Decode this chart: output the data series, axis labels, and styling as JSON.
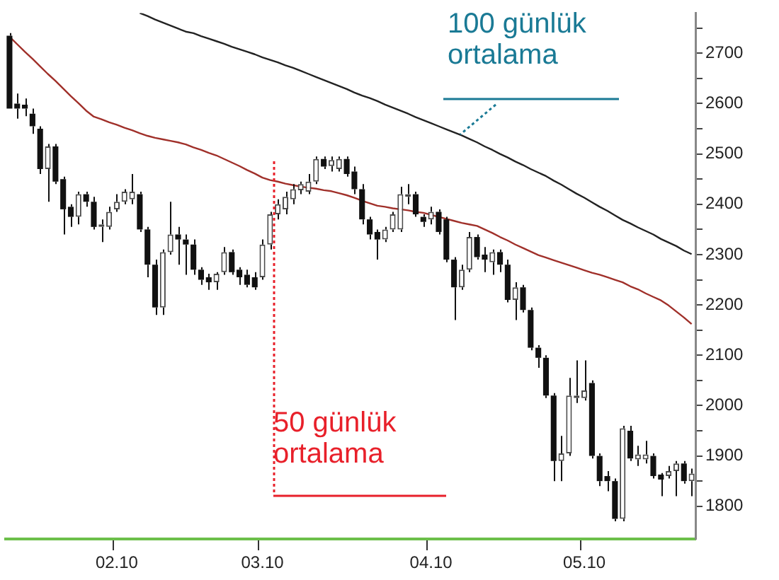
{
  "chart_data": {
    "type": "candlestick",
    "categories": [
      null,
      null,
      null,
      null,
      null,
      null,
      null,
      null,
      null,
      null,
      null,
      null,
      null,
      null,
      "02.10",
      null,
      null,
      null,
      null,
      null,
      null,
      null,
      null,
      null,
      null,
      null,
      null,
      null,
      null,
      null,
      null,
      null,
      null,
      "03.10",
      null,
      null,
      null,
      null,
      null,
      null,
      null,
      null,
      null,
      null,
      null,
      null,
      null,
      null,
      null,
      null,
      null,
      null,
      null,
      null,
      null,
      "04.10",
      null,
      null,
      null,
      null,
      null,
      null,
      null,
      null,
      null,
      null,
      null,
      null,
      null,
      null,
      null,
      null,
      null,
      null,
      null,
      "05.10",
      null,
      null,
      null,
      null,
      null,
      null,
      null,
      null,
      null,
      null,
      null,
      null,
      null,
      null
    ],
    "ohlc": [
      [
        2735,
        2740,
        2590,
        2590
      ],
      [
        2600,
        2620,
        2570,
        2590
      ],
      [
        2598,
        2610,
        2575,
        2590
      ],
      [
        2580,
        2590,
        2540,
        2555
      ],
      [
        2550,
        2555,
        2460,
        2470
      ],
      [
        2470,
        2520,
        2405,
        2515
      ],
      [
        2515,
        2520,
        2440,
        2445
      ],
      [
        2450,
        2455,
        2340,
        2390
      ],
      [
        2395,
        2400,
        2355,
        2375
      ],
      [
        2375,
        2425,
        2360,
        2420
      ],
      [
        2420,
        2425,
        2395,
        2405
      ],
      [
        2405,
        2415,
        2350,
        2355
      ],
      [
        2355,
        2370,
        2325,
        2360
      ],
      [
        2355,
        2395,
        2350,
        2385
      ],
      [
        2390,
        2420,
        2385,
        2405
      ],
      [
        2405,
        2430,
        2400,
        2425
      ],
      [
        2410,
        2460,
        2400,
        2425
      ],
      [
        2420,
        2425,
        2345,
        2350
      ],
      [
        2350,
        2355,
        2255,
        2280
      ],
      [
        2280,
        2290,
        2180,
        2195
      ],
      [
        2195,
        2310,
        2180,
        2305
      ],
      [
        2305,
        2405,
        2300,
        2340
      ],
      [
        2340,
        2355,
        2280,
        2330
      ],
      [
        2330,
        2340,
        2260,
        2320
      ],
      [
        2320,
        2330,
        2260,
        2270
      ],
      [
        2270,
        2275,
        2240,
        2250
      ],
      [
        2255,
        2262,
        2230,
        2245
      ],
      [
        2245,
        2265,
        2230,
        2262
      ],
      [
        2265,
        2315,
        2260,
        2305
      ],
      [
        2305,
        2310,
        2260,
        2265
      ],
      [
        2270,
        2275,
        2240,
        2255
      ],
      [
        2260,
        2270,
        2235,
        2240
      ],
      [
        2255,
        2265,
        2230,
        2235
      ],
      [
        2255,
        2330,
        2250,
        2320
      ],
      [
        2320,
        2385,
        2310,
        2380
      ],
      [
        2380,
        2410,
        2370,
        2400
      ],
      [
        2390,
        2425,
        2380,
        2415
      ],
      [
        2410,
        2440,
        2400,
        2430
      ],
      [
        2428,
        2445,
        2420,
        2440
      ],
      [
        2425,
        2460,
        2420,
        2445
      ],
      [
        2445,
        2495,
        2440,
        2490
      ],
      [
        2490,
        2495,
        2470,
        2475
      ],
      [
        2476,
        2495,
        2465,
        2488
      ],
      [
        2470,
        2495,
        2465,
        2490
      ],
      [
        2490,
        2495,
        2455,
        2460
      ],
      [
        2465,
        2475,
        2420,
        2430
      ],
      [
        2430,
        2440,
        2360,
        2370
      ],
      [
        2370,
        2375,
        2330,
        2340
      ],
      [
        2345,
        2350,
        2290,
        2330
      ],
      [
        2330,
        2355,
        2325,
        2350
      ],
      [
        2350,
        2385,
        2345,
        2380
      ],
      [
        2350,
        2435,
        2345,
        2420
      ],
      [
        2415,
        2440,
        2400,
        2420
      ],
      [
        2420,
        2425,
        2375,
        2380
      ],
      [
        2375,
        2380,
        2355,
        2365
      ],
      [
        2370,
        2395,
        2360,
        2385
      ],
      [
        2385,
        2390,
        2340,
        2345
      ],
      [
        2370,
        2375,
        2285,
        2290
      ],
      [
        2290,
        2295,
        2170,
        2235
      ],
      [
        2235,
        2280,
        2230,
        2270
      ],
      [
        2270,
        2345,
        2265,
        2335
      ],
      [
        2335,
        2340,
        2290,
        2295
      ],
      [
        2300,
        2315,
        2265,
        2290
      ],
      [
        2285,
        2310,
        2260,
        2305
      ],
      [
        2305,
        2310,
        2265,
        2280
      ],
      [
        2280,
        2290,
        2205,
        2210
      ],
      [
        2210,
        2245,
        2170,
        2235
      ],
      [
        2235,
        2240,
        2185,
        2190
      ],
      [
        2190,
        2195,
        2110,
        2115
      ],
      [
        2115,
        2120,
        2075,
        2095
      ],
      [
        2095,
        2100,
        2015,
        2020
      ],
      [
        2020,
        2025,
        1850,
        1890
      ],
      [
        1890,
        1940,
        1850,
        1905
      ],
      [
        1905,
        2055,
        1900,
        2020
      ],
      [
        2015,
        2090,
        2005,
        2020
      ],
      [
        2015,
        2090,
        2010,
        2030
      ],
      [
        2045,
        2050,
        1895,
        1900
      ],
      [
        1900,
        1905,
        1840,
        1850
      ],
      [
        1860,
        1870,
        1830,
        1850
      ],
      [
        1850,
        1855,
        1770,
        1775
      ],
      [
        1775,
        1960,
        1770,
        1955
      ],
      [
        1950,
        1960,
        1890,
        1895
      ],
      [
        1893,
        1920,
        1880,
        1903
      ],
      [
        1893,
        1930,
        1885,
        1903
      ],
      [
        1900,
        1905,
        1855,
        1860
      ],
      [
        1863,
        1866,
        1820,
        1853
      ],
      [
        1860,
        1880,
        1855,
        1870
      ],
      [
        1870,
        1890,
        1820,
        1885
      ],
      [
        1885,
        1890,
        1845,
        1850
      ],
      [
        1850,
        1875,
        1820,
        1865
      ]
    ],
    "series": [
      {
        "type": "line",
        "name": "100 günlük ortalama",
        "color": "#222222",
        "values": [
          null,
          null,
          null,
          null,
          null,
          null,
          null,
          null,
          null,
          null,
          null,
          null,
          null,
          null,
          null,
          null,
          null,
          2780,
          2774,
          2767,
          2761,
          2755,
          2749,
          2743,
          2740,
          2734,
          2729,
          2724,
          2719,
          2713,
          2708,
          2703,
          2698,
          2692,
          2687,
          2682,
          2676,
          2671,
          2665,
          2659,
          2653,
          2647,
          2641,
          2635,
          2629,
          2622,
          2616,
          2611,
          2605,
          2598,
          2592,
          2586,
          2580,
          2573,
          2567,
          2561,
          2555,
          2549,
          2543,
          2537,
          2530,
          2523,
          2515,
          2508,
          2500,
          2493,
          2485,
          2478,
          2470,
          2463,
          2456,
          2447,
          2439,
          2430,
          2421,
          2413,
          2404,
          2395,
          2387,
          2378,
          2369,
          2362,
          2354,
          2347,
          2340,
          2331,
          2324,
          2317,
          2308,
          2301
        ]
      },
      {
        "type": "line",
        "name": "50 günlük ortalama",
        "color": "#a0302a",
        "values": [
          2733,
          2718,
          2703,
          2689,
          2674,
          2659,
          2645,
          2630,
          2615,
          2601,
          2586,
          2574,
          2569,
          2563,
          2558,
          2552,
          2547,
          2541,
          2536,
          2532,
          2529,
          2526,
          2523,
          2519,
          2513,
          2508,
          2502,
          2497,
          2490,
          2483,
          2476,
          2468,
          2461,
          2453,
          2448,
          2445,
          2441,
          2438,
          2435,
          2433,
          2431,
          2428,
          2426,
          2422,
          2418,
          2413,
          2407,
          2402,
          2397,
          2395,
          2392,
          2390,
          2388,
          2385,
          2383,
          2379,
          2375,
          2371,
          2367,
          2363,
          2360,
          2357,
          2350,
          2343,
          2335,
          2328,
          2320,
          2313,
          2306,
          2299,
          2294,
          2289,
          2284,
          2279,
          2274,
          2269,
          2264,
          2260,
          2255,
          2250,
          2245,
          2237,
          2231,
          2223,
          2216,
          2209,
          2199,
          2187,
          2175,
          2162
        ]
      }
    ],
    "ylim": [
      1735,
      2780
    ],
    "yticks": [
      1800,
      {
        "value": 1850,
        "label": null
      },
      1900,
      {
        "value": 1950,
        "label": null
      },
      2000,
      {
        "value": 2050,
        "label": null
      },
      2100,
      {
        "value": 2150,
        "label": null
      },
      2200,
      {
        "value": 2250,
        "label": null
      },
      2300,
      {
        "value": 2350,
        "label": null
      },
      2400,
      {
        "value": 2450,
        "label": null
      },
      2500,
      {
        "value": 2550,
        "label": null
      },
      2600,
      {
        "value": 2650,
        "label": null
      },
      2700,
      {
        "value": 2750,
        "label": null
      }
    ],
    "grid": false,
    "legend": false
  }
}
